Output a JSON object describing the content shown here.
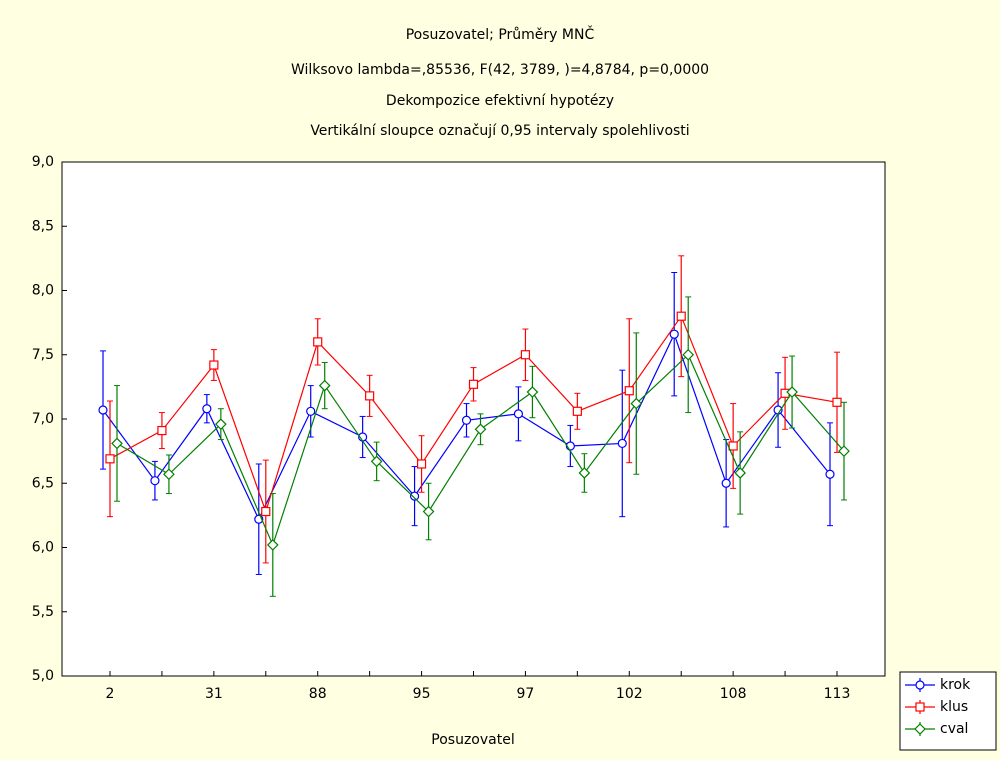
{
  "chart_data": {
    "type": "line",
    "title": "Posuzovatel; Průměry MNČ",
    "subtitles": [
      "Wilksovo lambda=,85536, F(42, 3789, )=4,8784, p=0,0000",
      "Dekompozice efektivní hypotézy",
      "Vertikální sloupce označují 0,95 intervaly spolehlivosti"
    ],
    "xlabel": "Posuzovatel",
    "categories": [
      "2",
      null,
      "31",
      null,
      "88",
      null,
      "95",
      null,
      "97",
      null,
      "102",
      null,
      "108",
      null,
      "113"
    ],
    "ylim": [
      5,
      9
    ],
    "yticks": [
      {
        "value": 5,
        "label": "5,0"
      },
      {
        "value": 5.5,
        "label": "5,5"
      },
      {
        "value": 6,
        "label": "6,0"
      },
      {
        "value": 6.5,
        "label": "6,5"
      },
      {
        "value": 7,
        "label": "7,0"
      },
      {
        "value": 7.5,
        "label": "7,5"
      },
      {
        "value": 8,
        "label": "8,0"
      },
      {
        "value": 8.5,
        "label": "8,5"
      },
      {
        "value": 9,
        "label": "9,0"
      }
    ],
    "grid": false,
    "legend": "bottom-right",
    "series": [
      {
        "name": "krok",
        "color": "#0000ff",
        "marker": "circle",
        "values": [
          7.07,
          6.52,
          7.08,
          6.22,
          7.06,
          6.86,
          6.4,
          6.99,
          7.04,
          6.79,
          6.81,
          7.66,
          6.5,
          7.07,
          6.57
        ],
        "errors": [
          0.46,
          0.15,
          0.11,
          0.43,
          0.2,
          0.16,
          0.23,
          0.13,
          0.21,
          0.16,
          0.57,
          0.48,
          0.34,
          0.29,
          0.4
        ]
      },
      {
        "name": "klus",
        "color": "#ff0000",
        "marker": "square",
        "values": [
          6.69,
          6.91,
          7.42,
          6.28,
          7.6,
          7.18,
          6.65,
          7.27,
          7.5,
          7.06,
          7.22,
          7.8,
          6.79,
          7.2,
          7.13
        ],
        "errors": [
          0.45,
          0.14,
          0.12,
          0.4,
          0.18,
          0.16,
          0.22,
          0.13,
          0.2,
          0.14,
          0.56,
          0.47,
          0.33,
          0.28,
          0.39
        ]
      },
      {
        "name": "cval",
        "color": "#008000",
        "marker": "diamond",
        "values": [
          6.81,
          6.57,
          6.96,
          6.02,
          7.26,
          6.67,
          6.28,
          6.92,
          7.21,
          6.58,
          7.12,
          7.5,
          6.58,
          7.21,
          6.75
        ],
        "errors": [
          0.45,
          0.15,
          0.12,
          0.4,
          0.18,
          0.15,
          0.22,
          0.12,
          0.2,
          0.15,
          0.55,
          0.45,
          0.32,
          0.28,
          0.38
        ]
      }
    ]
  }
}
